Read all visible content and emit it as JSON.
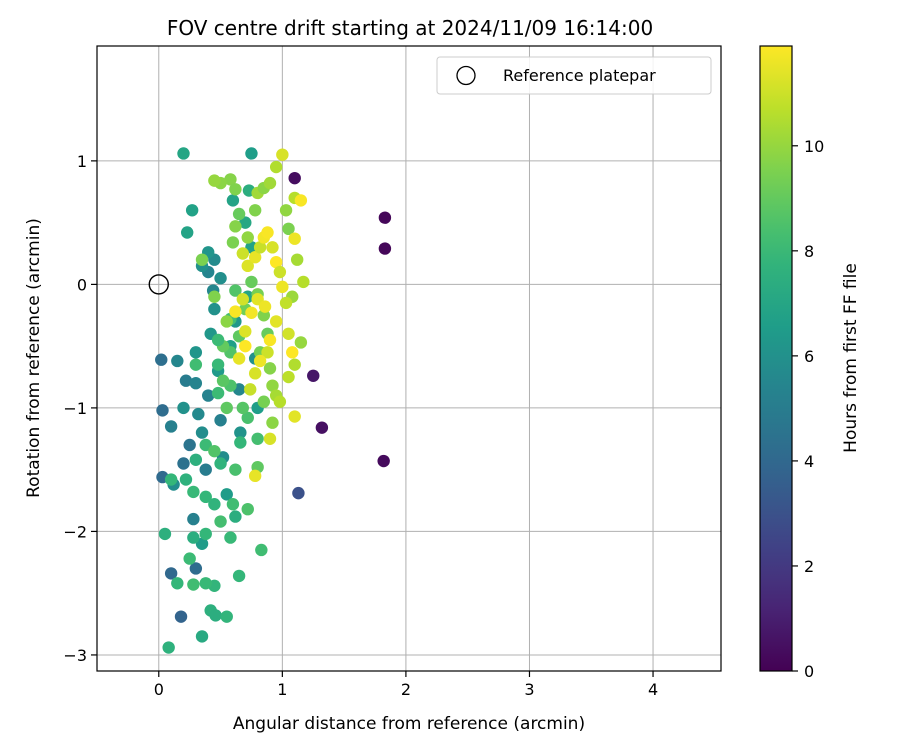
{
  "chart_data": {
    "type": "scatter",
    "title": "FOV centre drift starting at 2024/11/09 16:14:00",
    "xlabel": "Angular distance from reference (arcmin)",
    "ylabel": "Rotation from reference (arcmin)",
    "xlim": [
      -0.5,
      4.55
    ],
    "ylim": [
      -3.13,
      1.93
    ],
    "xticks": [
      0,
      1,
      2,
      3,
      4
    ],
    "yticks": [
      -3,
      -2,
      -1,
      0,
      1
    ],
    "xtick_labels": [
      "0",
      "1",
      "2",
      "3",
      "4"
    ],
    "ytick_labels": [
      "−3",
      "−2",
      "−1",
      "0",
      "1"
    ],
    "grid": true,
    "legend": {
      "placement": "top-right",
      "entries": [
        "Reference platepar"
      ]
    },
    "reference_point": {
      "x": 0,
      "y": 0,
      "label": "Reference platepar"
    },
    "colorbar": {
      "label": "Hours from first FF file",
      "colormap": "viridis",
      "range": [
        0,
        11.9
      ],
      "ticks": [
        0,
        2,
        4,
        6,
        8,
        10
      ],
      "tick_labels": [
        "0",
        "2",
        "4",
        "6",
        "8",
        "10"
      ]
    },
    "points": [
      [
        1.83,
        0.54,
        0.2
      ],
      [
        1.83,
        0.29,
        0.2
      ],
      [
        1.82,
        -1.43,
        0.3
      ],
      [
        1.32,
        -1.16,
        0.5
      ],
      [
        1.25,
        -0.74,
        0.7
      ],
      [
        1.1,
        0.86,
        0.4
      ],
      [
        1.13,
        -1.69,
        3.0
      ],
      [
        0.02,
        -0.61,
        4.3
      ],
      [
        0.03,
        -1.02,
        4.2
      ],
      [
        0.03,
        -1.56,
        4.1
      ],
      [
        0.1,
        -2.34,
        4.0
      ],
      [
        0.18,
        -2.69,
        3.8
      ],
      [
        0.3,
        -2.3,
        4.2
      ],
      [
        0.1,
        -1.15,
        5.2
      ],
      [
        0.15,
        -0.62,
        5.5
      ],
      [
        0.2,
        -1.45,
        4.4
      ],
      [
        0.12,
        -1.62,
        5.8
      ],
      [
        0.2,
        -1.0,
        6.0
      ],
      [
        0.22,
        -0.78,
        5.0
      ],
      [
        0.25,
        -1.3,
        4.6
      ],
      [
        0.3,
        -0.55,
        6.2
      ],
      [
        0.3,
        -0.8,
        5.4
      ],
      [
        0.32,
        -1.05,
        5.6
      ],
      [
        0.35,
        -1.2,
        5.8
      ],
      [
        0.28,
        -1.9,
        5.2
      ],
      [
        0.35,
        -2.1,
        6.5
      ],
      [
        0.38,
        -1.5,
        5.0
      ],
      [
        0.4,
        -0.9,
        5.3
      ],
      [
        0.42,
        -0.4,
        6.3
      ],
      [
        0.45,
        -0.2,
        6.0
      ],
      [
        0.4,
        0.1,
        5.4
      ],
      [
        0.45,
        0.2,
        5.7
      ],
      [
        0.5,
        0.05,
        5.9
      ],
      [
        0.44,
        -0.05,
        5.5
      ],
      [
        0.48,
        -0.7,
        6.4
      ],
      [
        0.5,
        -1.1,
        5.2
      ],
      [
        0.52,
        -1.4,
        5.8
      ],
      [
        0.55,
        -1.7,
        6.5
      ],
      [
        0.58,
        -0.5,
        6.7
      ],
      [
        0.6,
        0.68,
        6.9
      ],
      [
        0.62,
        -0.3,
        6.3
      ],
      [
        0.65,
        -0.85,
        5.5
      ],
      [
        0.66,
        -1.2,
        6.1
      ],
      [
        0.7,
        0.5,
        7.1
      ],
      [
        0.75,
        0.3,
        6.8
      ],
      [
        0.72,
        -0.1,
        7.0
      ],
      [
        0.78,
        -0.6,
        6.0
      ],
      [
        0.8,
        -1.0,
        6.6
      ],
      [
        0.73,
        0.76,
        7.4
      ],
      [
        0.75,
        1.06,
        6.6
      ],
      [
        0.2,
        1.06,
        7.0
      ],
      [
        0.23,
        0.42,
        6.9
      ],
      [
        0.27,
        0.6,
        6.8
      ],
      [
        0.35,
        0.15,
        6.0
      ],
      [
        0.4,
        0.26,
        6.2
      ],
      [
        0.35,
        -2.85,
        7.2
      ],
      [
        0.08,
        -2.94,
        7.6
      ],
      [
        0.42,
        -2.64,
        7.5
      ],
      [
        0.46,
        -2.68,
        7.4
      ],
      [
        0.55,
        -2.69,
        7.8
      ],
      [
        0.45,
        -2.44,
        7.8
      ],
      [
        0.38,
        -2.42,
        8.0
      ],
      [
        0.28,
        -2.43,
        8.2
      ],
      [
        0.15,
        -2.42,
        7.9
      ],
      [
        0.25,
        -2.22,
        8.1
      ],
      [
        0.65,
        -2.36,
        7.9
      ],
      [
        0.83,
        -2.15,
        8.2
      ],
      [
        0.05,
        -2.02,
        7.5
      ],
      [
        0.28,
        -2.05,
        7.4
      ],
      [
        0.38,
        -2.02,
        7.9
      ],
      [
        0.58,
        -2.05,
        8.0
      ],
      [
        0.5,
        -1.92,
        8.3
      ],
      [
        0.62,
        -1.88,
        7.4
      ],
      [
        0.72,
        -1.82,
        8.5
      ],
      [
        0.6,
        -1.78,
        8.2
      ],
      [
        0.45,
        -1.78,
        7.7
      ],
      [
        0.38,
        -1.72,
        7.9
      ],
      [
        0.28,
        -1.68,
        8.0
      ],
      [
        0.22,
        -1.58,
        7.6
      ],
      [
        0.1,
        -1.58,
        7.9
      ],
      [
        0.3,
        -1.42,
        7.5
      ],
      [
        0.38,
        -1.3,
        8.1
      ],
      [
        0.5,
        -1.45,
        7.7
      ],
      [
        0.62,
        -1.5,
        8.4
      ],
      [
        0.66,
        -1.28,
        7.9
      ],
      [
        0.8,
        -1.25,
        8.3
      ],
      [
        0.8,
        -1.48,
        8.9
      ],
      [
        0.78,
        -1.55,
        11.5
      ],
      [
        0.72,
        -1.08,
        8.4
      ],
      [
        0.68,
        -1.0,
        8.7
      ],
      [
        0.55,
        -1.0,
        8.9
      ],
      [
        0.48,
        -0.88,
        8.1
      ],
      [
        0.58,
        -0.82,
        8.5
      ],
      [
        0.52,
        -0.78,
        8.8
      ],
      [
        0.48,
        -0.65,
        8.0
      ],
      [
        0.58,
        -0.55,
        8.6
      ],
      [
        0.52,
        -0.5,
        9.0
      ],
      [
        0.48,
        -0.45,
        8.1
      ],
      [
        0.65,
        -0.42,
        8.9
      ],
      [
        0.58,
        -0.28,
        8.3
      ],
      [
        0.7,
        -0.2,
        9.3
      ],
      [
        0.62,
        -0.05,
        8.6
      ],
      [
        0.75,
        0.02,
        9.1
      ],
      [
        0.8,
        -0.08,
        9.4
      ],
      [
        0.85,
        -0.25,
        9.6
      ],
      [
        0.88,
        -0.4,
        9.1
      ],
      [
        0.82,
        -0.55,
        9.3
      ],
      [
        0.9,
        -0.68,
        9.7
      ],
      [
        0.92,
        -0.82,
        9.9
      ],
      [
        0.85,
        -0.95,
        9.4
      ],
      [
        0.92,
        -1.12,
        9.8
      ],
      [
        0.9,
        -1.25,
        11.2
      ],
      [
        1.1,
        -1.07,
        11.4
      ],
      [
        1.15,
        -0.47,
        10.0
      ],
      [
        0.6,
        0.34,
        9.5
      ],
      [
        0.62,
        0.47,
        9.7
      ],
      [
        0.65,
        0.57,
        9.1
      ],
      [
        0.72,
        0.38,
        9.9
      ],
      [
        0.78,
        0.6,
        9.6
      ],
      [
        0.8,
        0.74,
        10.2
      ],
      [
        0.85,
        0.78,
        9.8
      ],
      [
        0.9,
        0.82,
        10.2
      ],
      [
        0.95,
        0.95,
        10.5
      ],
      [
        1.0,
        1.05,
        11.2
      ],
      [
        1.03,
        0.6,
        9.9
      ],
      [
        1.05,
        0.45,
        9.5
      ],
      [
        1.1,
        0.7,
        10.6
      ],
      [
        1.15,
        0.68,
        11.8
      ],
      [
        1.1,
        0.37,
        11.6
      ],
      [
        1.12,
        0.2,
        10.3
      ],
      [
        1.17,
        0.02,
        10.6
      ],
      [
        1.08,
        -0.1,
        10.1
      ],
      [
        0.58,
        0.85,
        9.7
      ],
      [
        0.5,
        0.82,
        9.8
      ],
      [
        0.45,
        0.84,
        10.0
      ],
      [
        0.62,
        0.77,
        9.6
      ],
      [
        0.35,
        0.2,
        9.5
      ],
      [
        0.68,
        0.25,
        11.0
      ],
      [
        0.72,
        0.15,
        11.3
      ],
      [
        0.78,
        0.22,
        11.5
      ],
      [
        0.82,
        0.3,
        10.9
      ],
      [
        0.85,
        0.38,
        11.7
      ],
      [
        0.88,
        0.42,
        11.8
      ],
      [
        0.92,
        0.3,
        11.2
      ],
      [
        0.95,
        0.18,
        11.9
      ],
      [
        0.98,
        0.1,
        11.0
      ],
      [
        1.0,
        -0.02,
        11.6
      ],
      [
        1.03,
        -0.15,
        10.8
      ],
      [
        0.95,
        -0.3,
        11.4
      ],
      [
        0.9,
        -0.45,
        11.8
      ],
      [
        0.88,
        -0.55,
        11.0
      ],
      [
        0.82,
        -0.62,
        11.6
      ],
      [
        0.78,
        -0.72,
        11.2
      ],
      [
        0.74,
        -0.85,
        10.9
      ],
      [
        0.7,
        -0.5,
        11.9
      ],
      [
        0.65,
        -0.6,
        11.5
      ],
      [
        0.7,
        -0.38,
        11.3
      ],
      [
        0.75,
        -0.23,
        11.7
      ],
      [
        0.68,
        -0.12,
        11.1
      ],
      [
        0.62,
        -0.22,
        11.8
      ],
      [
        0.8,
        -0.12,
        11.4
      ],
      [
        0.86,
        -0.18,
        11.6
      ],
      [
        1.05,
        -0.4,
        11.1
      ],
      [
        1.08,
        -0.55,
        11.9
      ],
      [
        1.1,
        -0.65,
        10.5
      ],
      [
        1.05,
        -0.75,
        10.7
      ],
      [
        0.95,
        -0.9,
        10.3
      ],
      [
        0.98,
        -0.95,
        10.6
      ],
      [
        0.55,
        -0.3,
        9.8
      ],
      [
        0.45,
        -0.1,
        9.6
      ],
      [
        0.3,
        -0.65,
        8.2
      ],
      [
        0.45,
        -1.35,
        8.6
      ]
    ]
  }
}
